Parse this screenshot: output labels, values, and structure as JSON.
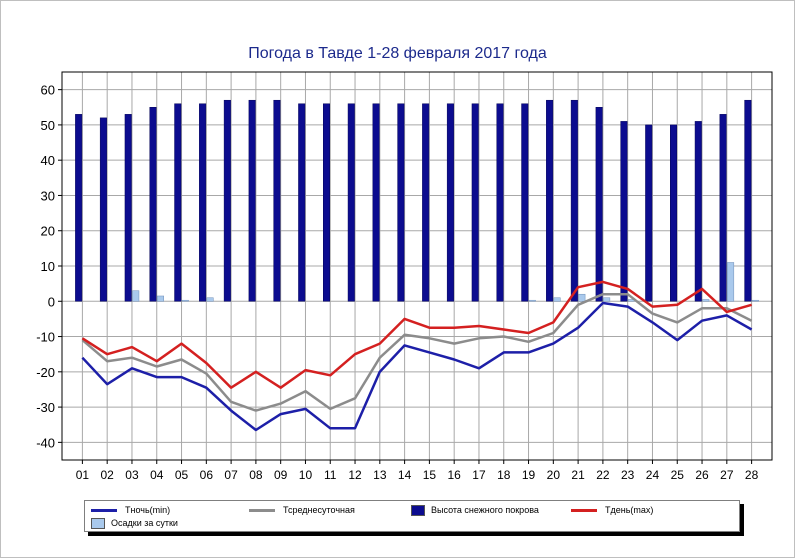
{
  "colors": {
    "tmin": "#1d1fa8",
    "tavg": "#8c8c8c",
    "snow": "#0c0c8f",
    "tmax": "#d42020",
    "precip": "#a9c9ec",
    "grid": "#a8a8a8"
  },
  "chart_data": {
    "type": "bar",
    "title": "Погода в Тавде 1-28 февраля 2017 года",
    "xlabel": "",
    "ylabel": "",
    "ylim": [
      -45,
      65
    ],
    "yticks": [
      60,
      50,
      40,
      30,
      20,
      10,
      0,
      -10,
      -20,
      -30,
      -40
    ],
    "grid": true,
    "legend_position": "bottom",
    "categories": [
      "01",
      "02",
      "03",
      "04",
      "05",
      "06",
      "07",
      "08",
      "09",
      "10",
      "11",
      "12",
      "13",
      "14",
      "15",
      "16",
      "17",
      "18",
      "19",
      "20",
      "21",
      "22",
      "23",
      "24",
      "25",
      "26",
      "27",
      "28"
    ],
    "series": [
      {
        "name": "Высота снежного покрова",
        "kind": "bar",
        "values": [
          53,
          52,
          53,
          55,
          56,
          56,
          57,
          57,
          57,
          56,
          56,
          56,
          56,
          56,
          56,
          56,
          56,
          56,
          56,
          57,
          57,
          55,
          51,
          50,
          50,
          51,
          53,
          57
        ]
      },
      {
        "name": "Осадки за сутки",
        "kind": "bar",
        "values": [
          0,
          0,
          3,
          1.5,
          0.3,
          1,
          0,
          0,
          0,
          0,
          0,
          0,
          0,
          0,
          0,
          0,
          0,
          0,
          0.3,
          1,
          2,
          1,
          0.5,
          0,
          0,
          0.5,
          11,
          0.3
        ]
      },
      {
        "name": "Тночь(min)",
        "kind": "line",
        "values": [
          -16,
          -23.5,
          -19,
          -21.5,
          -21.5,
          -24.5,
          -31,
          -36.5,
          -32,
          -30.5,
          -36,
          -36,
          -20,
          -12.5,
          -14.5,
          -16.5,
          -19,
          -14.5,
          -14.5,
          -12,
          -7.5,
          -0.5,
          -1.5,
          -6,
          -11,
          -5.5,
          -4,
          -8
        ]
      },
      {
        "name": "Тсреднесуточная",
        "kind": "line",
        "values": [
          -11,
          -17,
          -16,
          -18.5,
          -16.5,
          -20.5,
          -28.5,
          -31,
          -29,
          -25.5,
          -30.5,
          -27.5,
          -16,
          -9.5,
          -10.5,
          -12,
          -10.5,
          -10,
          -11.5,
          -9,
          -1,
          2,
          2,
          -3.5,
          -6,
          -2,
          -2,
          -5.5
        ]
      },
      {
        "name": "Тдень(max)",
        "kind": "line",
        "values": [
          -10.5,
          -15,
          -13,
          -17,
          -12,
          -17.5,
          -24.5,
          -20,
          -24.5,
          -19.5,
          -21,
          -15,
          -12,
          -5,
          -7.5,
          -7.5,
          -7,
          -8,
          -9,
          -6,
          4,
          5.5,
          3.5,
          -1.5,
          -1,
          3.5,
          -3,
          -1
        ]
      }
    ]
  },
  "legend": [
    {
      "label": "Тночь(min)",
      "swatch": "line",
      "color": "#1d1fa8"
    },
    {
      "label": "Тсреднесуточная",
      "swatch": "line",
      "color": "#8c8c8c"
    },
    {
      "label": "Высота снежного покрова",
      "swatch": "box",
      "color": "#0c0c8f"
    },
    {
      "label": "Тдень(max)",
      "swatch": "line",
      "color": "#d42020"
    },
    {
      "label": "Осадки за сутки",
      "swatch": "box",
      "color": "#a9c9ec"
    }
  ]
}
